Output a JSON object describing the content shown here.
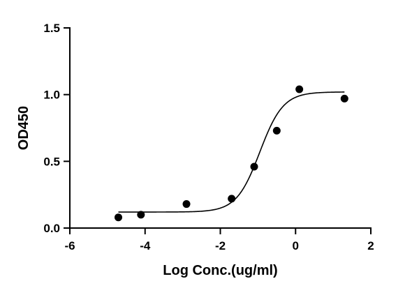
{
  "chart_data": {
    "type": "scatter",
    "title": "",
    "xlabel": "Log Conc.(ug/ml)",
    "ylabel": "OD450",
    "xlim": [
      -6,
      2
    ],
    "ylim": [
      0,
      1.5
    ],
    "x_ticks": [
      -6,
      -4,
      -2,
      0,
      2
    ],
    "x_tick_labels": [
      "-6",
      "-4",
      "-2",
      "0",
      "2"
    ],
    "y_ticks": [
      0,
      0.5,
      1.0,
      1.5
    ],
    "y_tick_labels": [
      "0.0",
      "0.5",
      "1.0",
      "1.5"
    ],
    "grid": false,
    "legend": "none",
    "series": [
      {
        "marker": "circle",
        "color": "#000000",
        "x": [
          -4.71,
          -4.11,
          -2.9,
          -1.7,
          -1.1,
          -0.5,
          0.1,
          1.3
        ],
        "y": [
          0.08,
          0.1,
          0.18,
          0.22,
          0.46,
          0.73,
          1.04,
          0.97
        ]
      }
    ],
    "fit_curve": {
      "type": "four-parameter logistic",
      "color": "#000000",
      "x_range": [
        -4.71,
        1.3
      ],
      "bottom": 0.12,
      "top": 1.02,
      "log_ec50": -0.95,
      "hill_slope": 1.4
    }
  }
}
